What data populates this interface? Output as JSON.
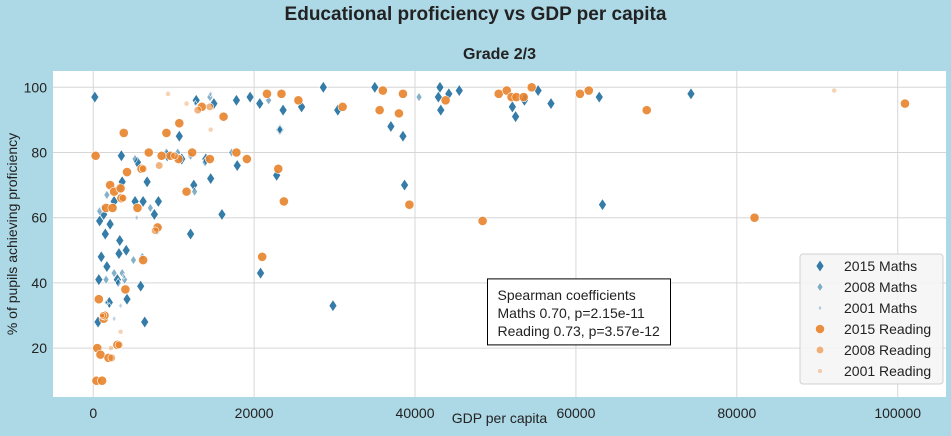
{
  "figure": {
    "suptitle": "Educational proficiency vs GDP per capita"
  },
  "chart_data": {
    "type": "scatter",
    "title": "Grade 2/3",
    "xlabel": "GDP per capita",
    "ylabel": "% of pupils achieving proficiency",
    "xlim": [
      -5000,
      106000
    ],
    "ylim": [
      5,
      105
    ],
    "xticks": [
      0,
      20000,
      40000,
      60000,
      80000,
      100000
    ],
    "xtick_labels": [
      "0",
      "20000",
      "40000",
      "60000",
      "80000",
      "100000"
    ],
    "yticks": [
      20,
      40,
      60,
      80,
      100
    ],
    "ytick_labels": [
      "20",
      "40",
      "60",
      "80",
      "100"
    ],
    "grid": true,
    "legend_position": "lower-right",
    "colors": {
      "maths": "#1f6f9f",
      "reading": "#e8822a",
      "plot_bg": "#ffffff",
      "figure_bg": "#add8e6",
      "grid": "#d6d6d6"
    },
    "annotation": {
      "lines": [
        "Spearman coefficients",
        "Maths 0.70, p=2.15e-11",
        "Reading 0.73, p=3.57e-12"
      ],
      "x": 50500,
      "y": 40
    },
    "series": [
      {
        "name": "2015 Maths",
        "marker": "diamond-large",
        "points": [
          [
            200,
            97
          ],
          [
            600,
            28
          ],
          [
            700,
            41
          ],
          [
            800,
            59
          ],
          [
            1000,
            48
          ],
          [
            1300,
            61
          ],
          [
            1500,
            55
          ],
          [
            1700,
            45
          ],
          [
            2000,
            34
          ],
          [
            2100,
            58
          ],
          [
            2600,
            65
          ],
          [
            3000,
            41
          ],
          [
            3200,
            49
          ],
          [
            3300,
            53
          ],
          [
            3500,
            79
          ],
          [
            3600,
            71
          ],
          [
            4100,
            50
          ],
          [
            4200,
            35
          ],
          [
            5200,
            65
          ],
          [
            5500,
            77
          ],
          [
            5900,
            39
          ],
          [
            6200,
            65
          ],
          [
            6400,
            28
          ],
          [
            6700,
            71
          ],
          [
            7600,
            61
          ],
          [
            8100,
            65
          ],
          [
            9200,
            79
          ],
          [
            10700,
            85
          ],
          [
            11000,
            78
          ],
          [
            12100,
            55
          ],
          [
            12500,
            70
          ],
          [
            12800,
            96
          ],
          [
            14000,
            78
          ],
          [
            14600,
            72
          ],
          [
            15000,
            95
          ],
          [
            16000,
            61
          ],
          [
            17800,
            96
          ],
          [
            17900,
            76
          ],
          [
            19500,
            97
          ],
          [
            20700,
            95
          ],
          [
            20800,
            43
          ],
          [
            22800,
            73
          ],
          [
            23200,
            87
          ],
          [
            23600,
            93
          ],
          [
            25900,
            94
          ],
          [
            28600,
            100
          ],
          [
            29800,
            33
          ],
          [
            30400,
            93
          ],
          [
            35000,
            100
          ],
          [
            37000,
            88
          ],
          [
            38500,
            85
          ],
          [
            38700,
            70
          ],
          [
            42900,
            97
          ],
          [
            43100,
            100
          ],
          [
            43200,
            93
          ],
          [
            44200,
            98
          ],
          [
            45500,
            99
          ],
          [
            52100,
            94
          ],
          [
            52500,
            91
          ],
          [
            53600,
            96
          ],
          [
            55300,
            99
          ],
          [
            56900,
            95
          ],
          [
            62900,
            97
          ],
          [
            63300,
            64
          ],
          [
            74300,
            98
          ]
        ]
      },
      {
        "name": "2008 Maths",
        "marker": "diamond-medium",
        "points": [
          [
            800,
            62
          ],
          [
            1200,
            63
          ],
          [
            1600,
            41
          ],
          [
            1700,
            67
          ],
          [
            2600,
            43
          ],
          [
            3100,
            40
          ],
          [
            3400,
            69
          ],
          [
            3600,
            43
          ],
          [
            3900,
            41
          ],
          [
            5000,
            47
          ],
          [
            5200,
            78
          ],
          [
            6100,
            48
          ],
          [
            7100,
            63
          ],
          [
            8000,
            56
          ],
          [
            9100,
            80
          ],
          [
            9500,
            79
          ],
          [
            10500,
            80
          ],
          [
            12100,
            79
          ],
          [
            12600,
            68
          ],
          [
            13900,
            77
          ],
          [
            14500,
            97
          ],
          [
            17200,
            80
          ],
          [
            21800,
            96
          ],
          [
            23200,
            87
          ],
          [
            40500,
            97
          ],
          [
            53700,
            97
          ]
        ]
      },
      {
        "name": "2001 Maths",
        "marker": "diamond-small",
        "points": [
          [
            1200,
            63
          ],
          [
            1600,
            34
          ],
          [
            2000,
            33
          ],
          [
            2600,
            29
          ],
          [
            3400,
            33
          ],
          [
            3800,
            42
          ],
          [
            5400,
            60
          ],
          [
            8200,
            57
          ],
          [
            12700,
            95
          ],
          [
            14600,
            98
          ]
        ]
      },
      {
        "name": "2015 Reading",
        "marker": "circle-large",
        "points": [
          [
            300,
            79
          ],
          [
            400,
            10
          ],
          [
            500,
            20
          ],
          [
            700,
            35
          ],
          [
            900,
            18
          ],
          [
            1100,
            10
          ],
          [
            1300,
            29
          ],
          [
            1400,
            30
          ],
          [
            1600,
            63
          ],
          [
            1900,
            17
          ],
          [
            2100,
            70
          ],
          [
            2400,
            63
          ],
          [
            2600,
            68
          ],
          [
            3000,
            21
          ],
          [
            3400,
            69
          ],
          [
            3500,
            66
          ],
          [
            3800,
            86
          ],
          [
            4000,
            38
          ],
          [
            4200,
            74
          ],
          [
            5500,
            63
          ],
          [
            6000,
            75
          ],
          [
            6200,
            47
          ],
          [
            6900,
            80
          ],
          [
            8000,
            57
          ],
          [
            8500,
            79
          ],
          [
            9100,
            86
          ],
          [
            9600,
            79
          ],
          [
            10600,
            78
          ],
          [
            10700,
            89
          ],
          [
            11600,
            68
          ],
          [
            12300,
            80
          ],
          [
            13500,
            94
          ],
          [
            14500,
            78
          ],
          [
            16200,
            91
          ],
          [
            17800,
            80
          ],
          [
            19100,
            78
          ],
          [
            21000,
            48
          ],
          [
            21600,
            98
          ],
          [
            23000,
            75
          ],
          [
            23400,
            98
          ],
          [
            23700,
            65
          ],
          [
            25500,
            96
          ],
          [
            31000,
            94
          ],
          [
            35600,
            93
          ],
          [
            36000,
            99
          ],
          [
            38000,
            92
          ],
          [
            38500,
            98
          ],
          [
            39300,
            64
          ],
          [
            43800,
            96
          ],
          [
            48400,
            59
          ],
          [
            50400,
            98
          ],
          [
            51400,
            99
          ],
          [
            52000,
            97
          ],
          [
            52600,
            97
          ],
          [
            53500,
            97
          ],
          [
            54500,
            100
          ],
          [
            60500,
            98
          ],
          [
            61600,
            99
          ],
          [
            68800,
            93
          ],
          [
            82200,
            60
          ],
          [
            100900,
            95
          ]
        ]
      },
      {
        "name": "2008 Reading",
        "marker": "circle-medium",
        "points": [
          [
            1200,
            30
          ],
          [
            2300,
            17
          ],
          [
            3200,
            21
          ],
          [
            3700,
            66
          ],
          [
            6200,
            75
          ],
          [
            7700,
            56
          ],
          [
            8200,
            76
          ],
          [
            10100,
            79
          ],
          [
            13000,
            93
          ],
          [
            14500,
            94
          ]
        ]
      },
      {
        "name": "2001 Reading",
        "marker": "circle-small",
        "points": [
          [
            1100,
            30
          ],
          [
            2200,
            20
          ],
          [
            3400,
            25
          ],
          [
            9300,
            98
          ],
          [
            11600,
            95
          ],
          [
            14600,
            87
          ],
          [
            92100,
            99
          ]
        ]
      }
    ]
  }
}
